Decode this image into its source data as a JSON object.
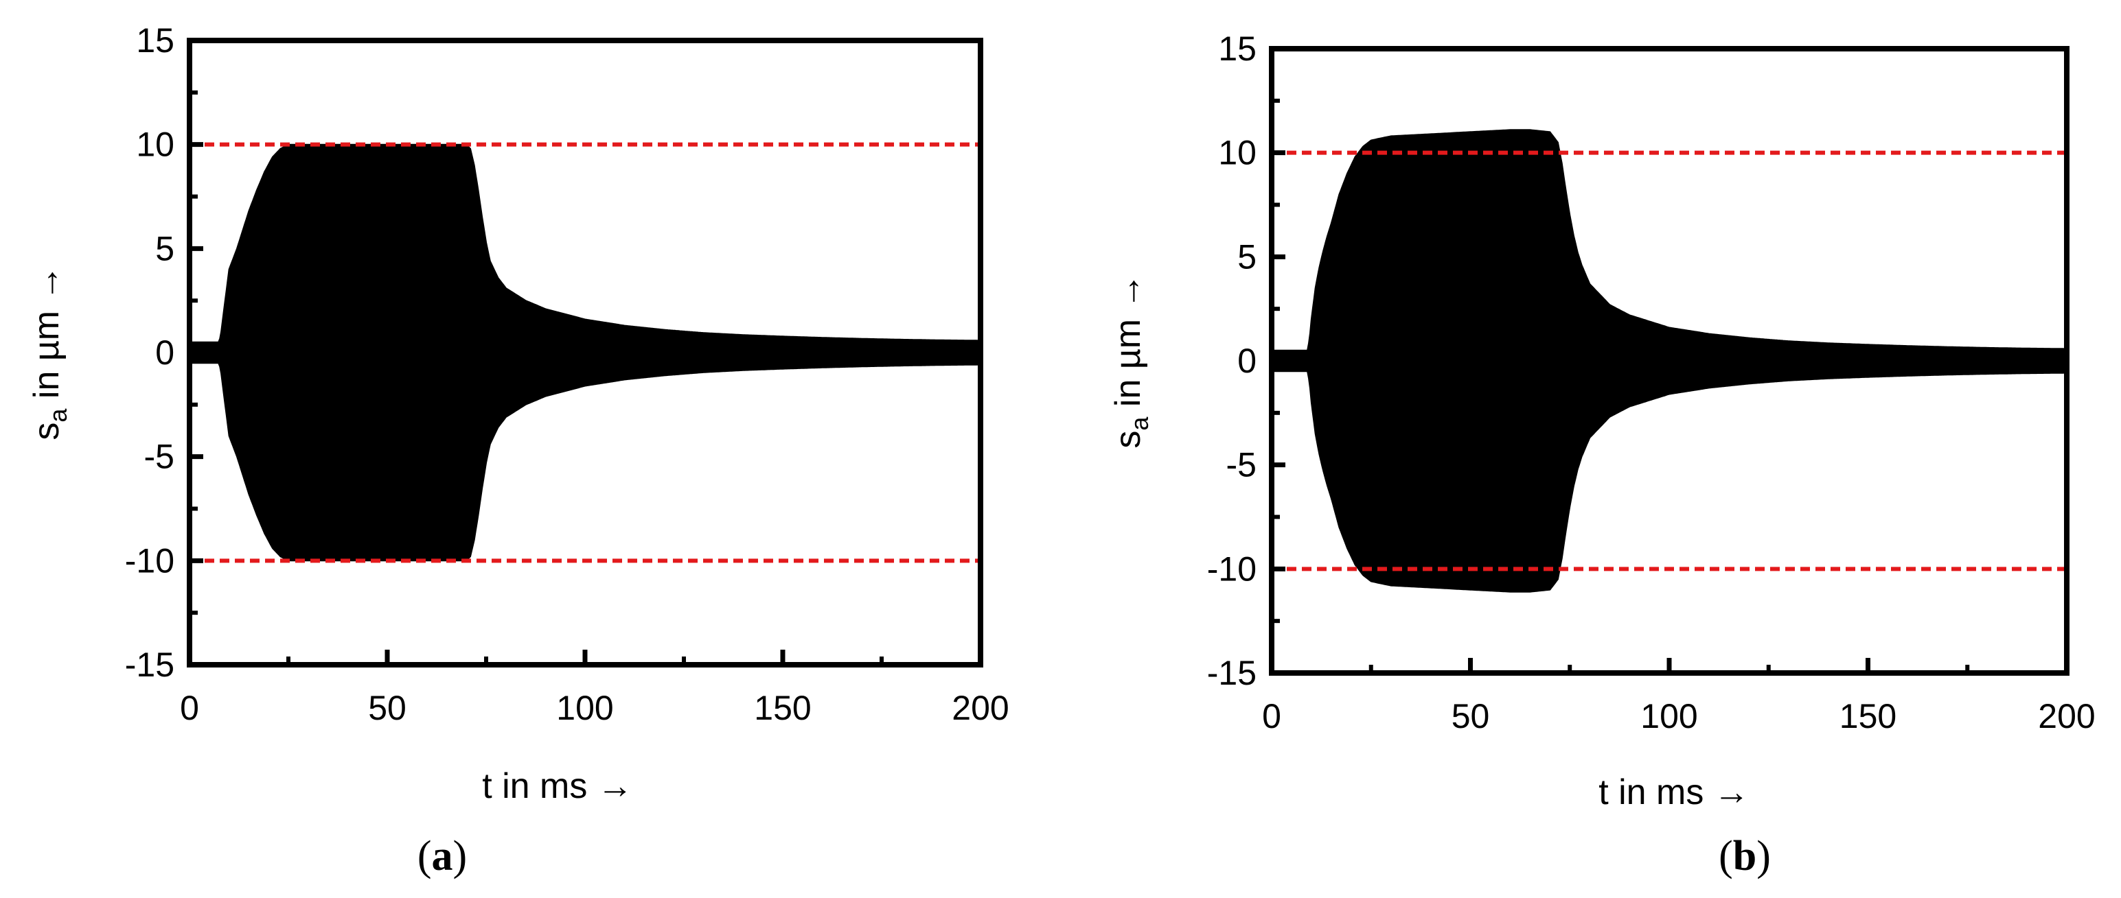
{
  "chart_data": [
    {
      "type": "area",
      "panel_label": "a",
      "xlabel": "t in ms →",
      "ylabel_main": "s",
      "ylabel_sub": "a",
      "ylabel_rest": " in µm →",
      "xlim": [
        0,
        200
      ],
      "ylim": [
        -15,
        15
      ],
      "x_ticks": [
        0,
        50,
        100,
        150,
        200
      ],
      "x_tick_labels": [
        "0",
        "50",
        "100",
        "150",
        "200"
      ],
      "y_ticks": [
        15,
        10,
        5,
        0,
        -5,
        -10,
        -15
      ],
      "y_tick_labels": [
        "15",
        "10",
        "5",
        "0",
        "-5",
        "-10",
        "-15"
      ],
      "reference_lines": [
        10,
        -10
      ],
      "reference_line_color": "#e31a1c",
      "signal_color": "#000000",
      "envelope": {
        "x": [
          0,
          7.5,
          8,
          9,
          10,
          12,
          15,
          17,
          19,
          21,
          23,
          25,
          30,
          40,
          50,
          60,
          70,
          71,
          72,
          73,
          74,
          75,
          76,
          78,
          80,
          85,
          90,
          100,
          110,
          120,
          130,
          140,
          150,
          160,
          170,
          180,
          190,
          200
        ],
        "y": [
          0.5,
          0.5,
          1.0,
          2.5,
          4.0,
          5.0,
          6.8,
          7.8,
          8.7,
          9.4,
          9.8,
          10.0,
          10.0,
          10.0,
          10.0,
          10.0,
          10.0,
          9.8,
          9.0,
          7.8,
          6.5,
          5.3,
          4.4,
          3.6,
          3.1,
          2.5,
          2.1,
          1.6,
          1.3,
          1.1,
          0.95,
          0.85,
          0.78,
          0.72,
          0.67,
          0.63,
          0.6,
          0.58
        ]
      }
    },
    {
      "type": "area",
      "panel_label": "b",
      "xlabel": "t in ms →",
      "ylabel_main": "s",
      "ylabel_sub": "a",
      "ylabel_rest": " in µm →",
      "xlim": [
        0,
        200
      ],
      "ylim": [
        -15,
        15
      ],
      "x_ticks": [
        0,
        50,
        100,
        150,
        200
      ],
      "x_tick_labels": [
        "0",
        "50",
        "100",
        "150",
        "200"
      ],
      "y_ticks": [
        15,
        10,
        5,
        0,
        -5,
        -10,
        -15
      ],
      "y_tick_labels": [
        "15",
        "10",
        "5",
        "0",
        "-5",
        "-10",
        "-15"
      ],
      "reference_lines": [
        10,
        -10
      ],
      "reference_line_color": "#e31a1c",
      "signal_color": "#000000",
      "envelope": {
        "x": [
          0,
          9,
          9.5,
          10,
          11,
          12,
          13,
          14,
          15,
          17,
          19,
          21,
          23,
          25,
          30,
          40,
          50,
          60,
          65,
          70,
          72,
          73,
          74,
          75,
          76,
          77,
          78,
          80,
          85,
          90,
          100,
          110,
          120,
          130,
          140,
          150,
          160,
          170,
          180,
          190,
          200
        ],
        "y": [
          0.5,
          0.5,
          1.0,
          2.0,
          3.5,
          4.5,
          5.3,
          6.0,
          6.6,
          8.0,
          9.0,
          9.8,
          10.3,
          10.6,
          10.8,
          10.9,
          11.0,
          11.1,
          11.1,
          11.0,
          10.5,
          9.5,
          8.2,
          7.0,
          6.0,
          5.2,
          4.6,
          3.7,
          2.7,
          2.2,
          1.6,
          1.3,
          1.1,
          0.95,
          0.85,
          0.78,
          0.72,
          0.67,
          0.63,
          0.6,
          0.58
        ]
      }
    }
  ]
}
